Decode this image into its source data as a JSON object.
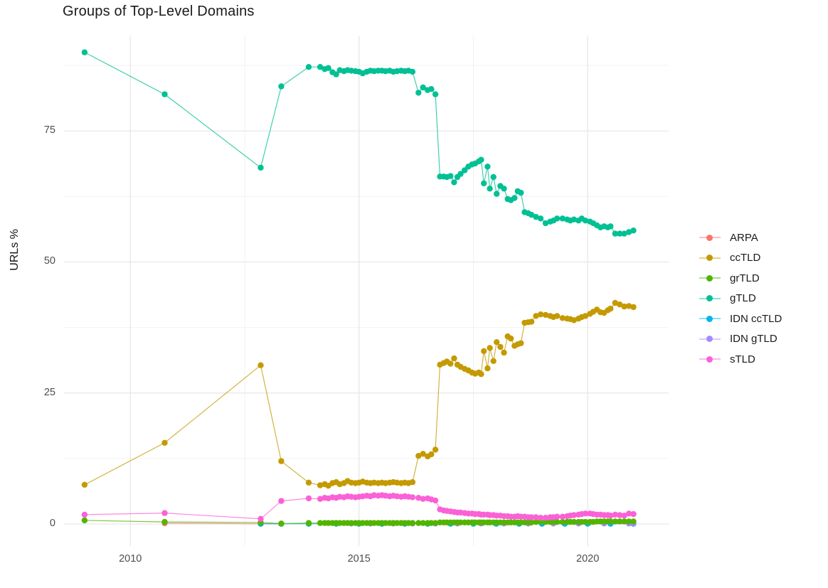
{
  "title": "Groups of Top-Level Domains",
  "axes": {
    "y_label": "URLs %",
    "y_tick_labels": [
      "0",
      "25",
      "50",
      "75"
    ],
    "x_tick_labels": [
      "2010",
      "2015",
      "2020"
    ]
  },
  "chart_data": {
    "type": "line",
    "title": "Groups of Top-Level Domains",
    "xlabel": "",
    "ylabel": "URLs %",
    "grid": true,
    "legend_position": "right",
    "xlim": [
      2008.55,
      2021.77
    ],
    "ylim": [
      -4.2,
      93.2
    ],
    "x_ticks": [
      2010,
      2015,
      2020
    ],
    "y_ticks": [
      0,
      25,
      50,
      75
    ],
    "x_minor_ticks": [
      2012.5,
      2017.5
    ],
    "y_minor_ticks": [
      12.5,
      37.5,
      62.5,
      87.5
    ],
    "z_order": [
      "ARPA",
      "IDN ccTLD",
      "IDN gTLD",
      "grTLD",
      "ccTLD",
      "gTLD",
      "sTLD"
    ],
    "x": [
      2009.0,
      2010.75,
      2012.85,
      2013.3,
      2013.9,
      2014.15,
      2014.25,
      2014.33,
      2014.42,
      2014.5,
      2014.58,
      2014.67,
      2014.75,
      2014.83,
      2014.92,
      2015.0,
      2015.08,
      2015.17,
      2015.25,
      2015.33,
      2015.42,
      2015.5,
      2015.58,
      2015.67,
      2015.75,
      2015.83,
      2015.92,
      2016.0,
      2016.08,
      2016.17,
      2016.3,
      2016.4,
      2016.5,
      2016.58,
      2016.67,
      2016.77,
      2016.85,
      2016.92,
      2017.0,
      2017.08,
      2017.15,
      2017.22,
      2017.31,
      2017.39,
      2017.47,
      2017.54,
      2017.62,
      2017.67,
      2017.73,
      2017.81,
      2017.86,
      2017.94,
      2018.01,
      2018.09,
      2018.17,
      2018.25,
      2018.32,
      2018.4,
      2018.47,
      2018.54,
      2018.62,
      2018.7,
      2018.77,
      2018.87,
      2018.97,
      2019.08,
      2019.18,
      2019.25,
      2019.33,
      2019.45,
      2019.55,
      2019.62,
      2019.7,
      2019.8,
      2019.87,
      2019.95,
      2020.05,
      2020.12,
      2020.2,
      2020.28,
      2020.36,
      2020.44,
      2020.5,
      2020.6,
      2020.7,
      2020.8,
      2020.9,
      2021.0
    ],
    "series": [
      {
        "name": "ARPA",
        "color": "#F8766D",
        "x": [
          2010.75,
          2012.85,
          2013.3
        ],
        "values": [
          0.15,
          0.05,
          0.05
        ]
      },
      {
        "name": "ccTLD",
        "color": "#C49A00",
        "values": [
          7.5,
          15.5,
          30.3,
          12.0,
          7.9,
          7.4,
          7.6,
          7.3,
          7.8,
          8.0,
          7.6,
          7.8,
          8.2,
          7.9,
          7.8,
          7.9,
          8.1,
          7.9,
          7.8,
          7.9,
          7.8,
          7.9,
          7.8,
          7.9,
          8.0,
          7.9,
          7.8,
          7.9,
          7.8,
          8.0,
          13.0,
          13.4,
          12.9,
          13.3,
          14.2,
          30.4,
          30.7,
          31.0,
          30.6,
          31.6,
          30.4,
          30.0,
          29.6,
          29.3,
          28.9,
          28.7,
          28.9,
          28.6,
          33.0,
          29.7,
          33.6,
          31.1,
          34.7,
          33.8,
          32.7,
          35.8,
          35.4,
          34.0,
          34.3,
          34.5,
          38.4,
          38.5,
          38.6,
          39.7,
          40.0,
          39.9,
          39.7,
          39.5,
          39.7,
          39.3,
          39.2,
          39.1,
          38.9,
          39.2,
          39.5,
          39.7,
          40.1,
          40.5,
          40.9,
          40.4,
          40.3,
          40.8,
          41.1,
          42.2,
          41.9,
          41.5,
          41.6,
          41.4
        ]
      },
      {
        "name": "grTLD",
        "color": "#53B400",
        "values": [
          0.7,
          0.4,
          0.3,
          0.1,
          0.2,
          0.2,
          0.2,
          0.2,
          0.2,
          0.2,
          0.2,
          0.2,
          0.2,
          0.2,
          0.2,
          0.2,
          0.2,
          0.2,
          0.2,
          0.2,
          0.2,
          0.2,
          0.2,
          0.2,
          0.2,
          0.2,
          0.2,
          0.2,
          0.2,
          0.2,
          0.2,
          0.2,
          0.2,
          0.2,
          0.2,
          0.3,
          0.3,
          0.3,
          0.3,
          0.3,
          0.3,
          0.3,
          0.3,
          0.3,
          0.3,
          0.3,
          0.3,
          0.3,
          0.3,
          0.3,
          0.3,
          0.3,
          0.3,
          0.3,
          0.3,
          0.3,
          0.3,
          0.3,
          0.3,
          0.3,
          0.3,
          0.3,
          0.3,
          0.4,
          0.4,
          0.4,
          0.4,
          0.4,
          0.4,
          0.4,
          0.4,
          0.4,
          0.4,
          0.4,
          0.4,
          0.4,
          0.4,
          0.4,
          0.5,
          0.5,
          0.5,
          0.5,
          0.5,
          0.5,
          0.5,
          0.5,
          0.5,
          0.5
        ]
      },
      {
        "name": "gTLD",
        "color": "#00C094",
        "values": [
          90.0,
          82.0,
          68.0,
          83.5,
          87.2,
          87.2,
          86.8,
          87.0,
          86.2,
          85.8,
          86.6,
          86.4,
          86.6,
          86.5,
          86.4,
          86.3,
          86.0,
          86.3,
          86.5,
          86.4,
          86.5,
          86.5,
          86.4,
          86.5,
          86.3,
          86.4,
          86.5,
          86.4,
          86.5,
          86.3,
          82.3,
          83.3,
          82.8,
          83.0,
          82.0,
          66.3,
          66.3,
          66.2,
          66.4,
          65.2,
          66.2,
          66.8,
          67.5,
          68.2,
          68.6,
          68.8,
          69.2,
          69.5,
          65.0,
          68.2,
          64.0,
          66.2,
          63.0,
          64.5,
          64.0,
          62.0,
          61.8,
          62.2,
          63.5,
          63.2,
          59.5,
          59.3,
          59.0,
          58.6,
          58.3,
          57.4,
          57.7,
          57.9,
          58.3,
          58.3,
          58.1,
          57.9,
          58.1,
          57.9,
          58.3,
          57.9,
          57.7,
          57.4,
          57.0,
          56.6,
          56.8,
          56.6,
          56.8,
          55.4,
          55.4,
          55.4,
          55.7,
          56.0
        ]
      },
      {
        "name": "IDN ccTLD",
        "color": "#00B6EB",
        "x": [
          2012.85,
          2013.3,
          2013.9,
          2014.5,
          2015.0,
          2015.5,
          2016.0,
          2016.5,
          2017.0,
          2017.5,
          2018.0,
          2018.5,
          2019.0,
          2019.5,
          2020.0,
          2020.5,
          2021.0
        ],
        "values": [
          0.05,
          0.05,
          0.05,
          0.05,
          0.05,
          0.05,
          0.05,
          0.05,
          0.05,
          0.05,
          0.05,
          0.05,
          0.05,
          0.05,
          0.05,
          0.05,
          0.05
        ]
      },
      {
        "name": "IDN gTLD",
        "color": "#A58AFF",
        "x": [
          2014.83,
          2015.25,
          2015.75,
          2016.17,
          2016.67,
          2017.15,
          2017.67,
          2018.17,
          2018.7,
          2019.25,
          2019.8,
          2020.36,
          2020.9,
          2021.0
        ],
        "values": [
          0.1,
          0.1,
          0.1,
          0.1,
          0.1,
          0.1,
          0.1,
          0.1,
          0.1,
          0.1,
          0.1,
          0.1,
          0.1,
          0.1
        ]
      },
      {
        "name": "sTLD",
        "color": "#FB61D7",
        "values": [
          1.8,
          2.1,
          1.0,
          4.4,
          4.9,
          4.8,
          5.0,
          4.9,
          5.1,
          5.0,
          5.2,
          5.1,
          5.3,
          5.2,
          5.1,
          5.2,
          5.3,
          5.4,
          5.3,
          5.5,
          5.4,
          5.5,
          5.4,
          5.3,
          5.4,
          5.3,
          5.2,
          5.3,
          5.2,
          5.1,
          5.0,
          4.8,
          4.9,
          4.7,
          4.5,
          2.8,
          2.6,
          2.5,
          2.4,
          2.3,
          2.2,
          2.2,
          2.1,
          2.0,
          2.0,
          1.9,
          1.9,
          1.8,
          1.8,
          1.8,
          1.7,
          1.7,
          1.6,
          1.6,
          1.5,
          1.5,
          1.4,
          1.4,
          1.5,
          1.4,
          1.4,
          1.3,
          1.3,
          1.3,
          1.2,
          1.2,
          1.3,
          1.3,
          1.4,
          1.4,
          1.5,
          1.6,
          1.7,
          1.8,
          1.9,
          2.0,
          2.0,
          1.9,
          1.8,
          1.8,
          1.7,
          1.7,
          1.6,
          1.8,
          1.7,
          1.6,
          2.0,
          1.9
        ]
      }
    ]
  },
  "style": {
    "grid_major_color": "#E6E6E6",
    "grid_minor_color": "#F2F2F2",
    "tick_label_color": "#4d4d4d",
    "title_color": "#1a1a1a",
    "background": "#ffffff"
  }
}
